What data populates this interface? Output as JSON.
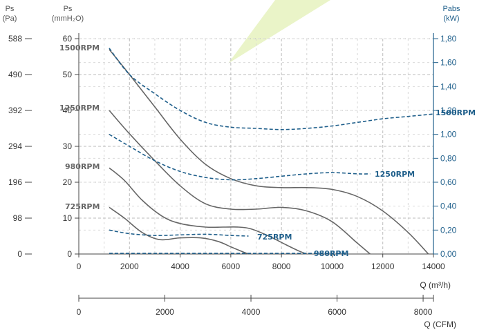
{
  "chart_data": {
    "type": "line",
    "xlabel": "Q (m³/h)",
    "xlabel2": "Q (CFM)",
    "x_ticks": [
      "0",
      "2000",
      "4000",
      "6000",
      "8000",
      "10000",
      "12000",
      "14000"
    ],
    "x2_ticks": [
      "0",
      "2000",
      "4000",
      "6000",
      "8000"
    ],
    "xlim": [
      0,
      14000
    ],
    "x2lim": [
      0,
      8240
    ],
    "y_left_pa": {
      "label": "Ps",
      "unit": "(Pa)",
      "ticks": [
        "588",
        "490",
        "392",
        "294",
        "196",
        "98",
        "0"
      ]
    },
    "y_left_mm": {
      "label": "Ps",
      "unit": "(mmH₂O)",
      "ticks": [
        "60",
        "50",
        "40",
        "30",
        "20",
        "10",
        "0"
      ],
      "ylim": [
        0,
        60
      ]
    },
    "y_right": {
      "label": "Pabs",
      "unit": "(kW)",
      "ticks": [
        "1,80",
        "1,60",
        "1,40",
        "1,20",
        "1,00",
        "0,80",
        "0,60",
        "0,40",
        "0,20",
        "0,00"
      ],
      "ylim": [
        0,
        1.8
      ]
    },
    "pressure_series": [
      {
        "name": "1500RPM",
        "x": [
          1200,
          2000,
          3000,
          4000,
          5000,
          6000,
          7000,
          8000,
          9000,
          10000,
          11000,
          12000,
          13000,
          13800
        ],
        "y": [
          57,
          50,
          41,
          32,
          25,
          21,
          19,
          18.5,
          18.5,
          18,
          16,
          12,
          6,
          0
        ]
      },
      {
        "name": "1250RPM",
        "x": [
          1200,
          2000,
          3000,
          4000,
          5000,
          6000,
          7000,
          8000,
          9000,
          10000,
          11000,
          11500
        ],
        "y": [
          40,
          33.5,
          26,
          19,
          14,
          12.5,
          12.5,
          13,
          12,
          9,
          3,
          0
        ]
      },
      {
        "name": "980RPM",
        "x": [
          1200,
          1800,
          2500,
          3300,
          4000,
          5000,
          5700,
          6300,
          6800,
          7500,
          8200,
          8700,
          9000
        ],
        "y": [
          24,
          20.5,
          15,
          10.5,
          8.5,
          7.5,
          7.5,
          7.5,
          7,
          5,
          2.5,
          0.8,
          0
        ]
      },
      {
        "name": "725RPM",
        "x": [
          1200,
          1800,
          2500,
          3200,
          4000,
          4800,
          5500,
          6000,
          6400,
          6700
        ],
        "y": [
          13,
          10,
          6,
          4,
          4.5,
          4.5,
          3.5,
          2,
          0.8,
          0
        ]
      }
    ],
    "power_series": [
      {
        "name": "1500RPM",
        "x": [
          1200,
          2000,
          3000,
          4000,
          5000,
          6000,
          7000,
          8000,
          9000,
          10000,
          11000,
          12000,
          13000,
          14000
        ],
        "y": [
          1.72,
          1.5,
          1.34,
          1.2,
          1.1,
          1.06,
          1.05,
          1.04,
          1.05,
          1.07,
          1.1,
          1.13,
          1.15,
          1.17
        ]
      },
      {
        "name": "1250RPM",
        "x": [
          1200,
          2000,
          3000,
          4000,
          5000,
          6000,
          7000,
          8000,
          9000,
          10000,
          11000,
          11500
        ],
        "y": [
          1.0,
          0.9,
          0.78,
          0.69,
          0.64,
          0.62,
          0.63,
          0.65,
          0.67,
          0.68,
          0.67,
          0.67
        ]
      },
      {
        "name": "980RPM",
        "x": [
          1200,
          3000,
          5000,
          7000,
          9000,
          10500
        ],
        "y": [
          0.005,
          0.005,
          0.005,
          0.005,
          0.005,
          0.005
        ]
      },
      {
        "name": "725RPM",
        "x": [
          1200,
          2000,
          3000,
          4000,
          5000,
          6000,
          6700
        ],
        "y": [
          0.2,
          0.17,
          0.155,
          0.16,
          0.165,
          0.155,
          0.15
        ]
      }
    ],
    "labels": {
      "p1500": "1500RPM",
      "p1250": "1250RPM",
      "p980": "980RPM",
      "p725": "725RPM",
      "w1500": "1500RPM",
      "w1250": "1250RPM",
      "w980": "980RPM",
      "w725": "725RPM"
    },
    "grid": true,
    "colors": {
      "pressure": "#666666",
      "power": "#1f5f8b",
      "grid": "#bbbbbb",
      "axis": "#1f5f8b",
      "watermark": "#e9f3c6"
    }
  }
}
